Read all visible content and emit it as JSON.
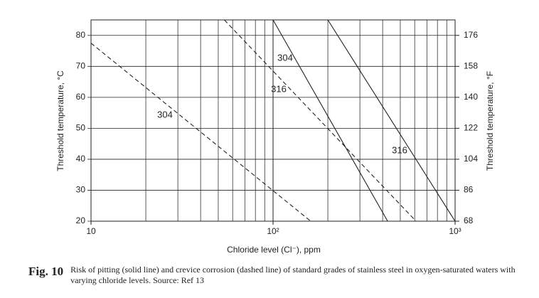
{
  "chart_data": {
    "type": "line",
    "x_label": "Chloride level (Cl⁻), ppm",
    "y_label": "Threshold temperature, °C",
    "y2_label": "Threshold temperature, °F",
    "xlim": [
      10,
      1000
    ],
    "xlog": true,
    "xticks": [
      10,
      {
        "value": 100,
        "label": "10²"
      },
      {
        "value": 1000,
        "label": "10³"
      }
    ],
    "x_minor_grid": [
      20,
      30,
      40,
      50,
      60,
      70,
      80,
      90,
      200,
      300,
      400,
      500,
      600,
      700,
      800,
      900
    ],
    "ylim": [
      20,
      85
    ],
    "yticks": [
      20,
      30,
      40,
      50,
      60,
      70,
      80
    ],
    "y2lim": [
      68,
      185
    ],
    "y2ticks": [
      68,
      86,
      104,
      122,
      140,
      158,
      176
    ],
    "grid": true,
    "series": [
      {
        "name": "304",
        "style": "dashed",
        "color": "#222",
        "x": [
          10,
          161
        ],
        "values": [
          77.5,
          20
        ]
      },
      {
        "name": "316",
        "style": "dashed",
        "color": "#222",
        "x": [
          54,
          610
        ],
        "values": [
          85,
          20
        ]
      },
      {
        "name": "304",
        "style": "solid",
        "color": "#222",
        "x": [
          100,
          426
        ],
        "values": [
          85,
          20
        ]
      },
      {
        "name": "316",
        "style": "solid",
        "color": "#222",
        "x": [
          200,
          1000
        ],
        "values": [
          85,
          20
        ]
      }
    ],
    "caption_label": "Fig. 10",
    "caption": "Risk of pitting (solid line) and crevice corrosion (dashed line) of standard grades of stainless steel in oxygen-saturated waters with varying chloride levels. Source: Ref 13"
  }
}
